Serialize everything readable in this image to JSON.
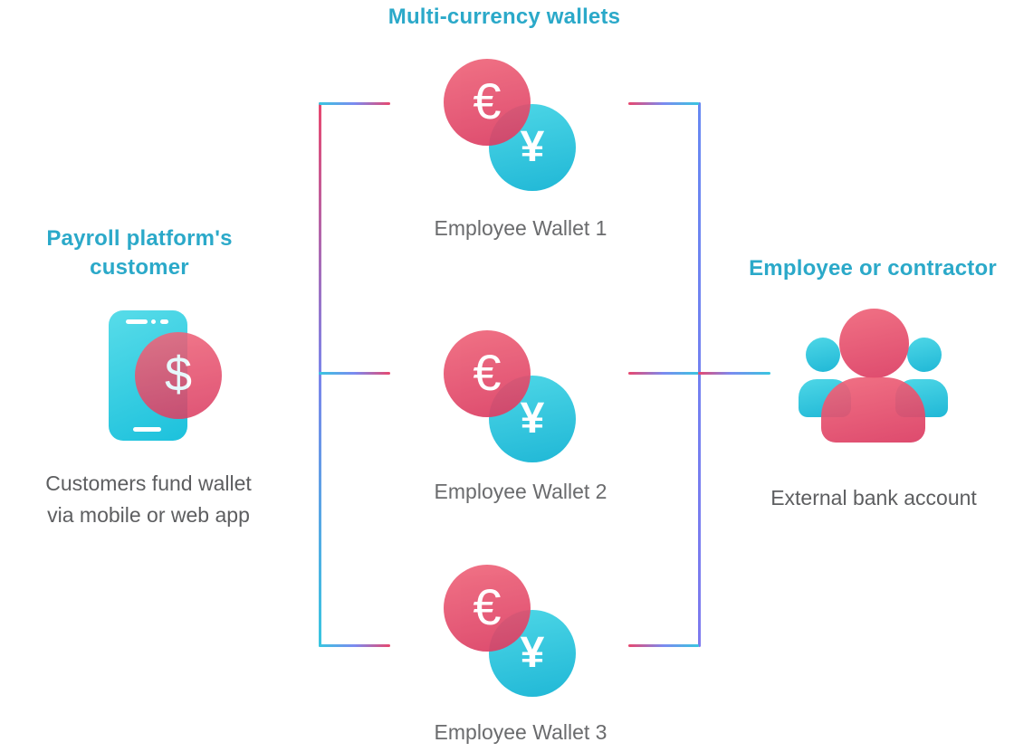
{
  "title": "Multi-currency wallets",
  "left_section": {
    "heading_line1": "Payroll platform's",
    "heading_line2": "customer",
    "caption_line1": "Customers fund wallet",
    "caption_line2": "via mobile or web app",
    "phone_currency": "$"
  },
  "wallets": {
    "currency_euro": "€",
    "currency_yen": "¥",
    "items": [
      {
        "label": "Employee Wallet 1"
      },
      {
        "label": "Employee Wallet 2"
      },
      {
        "label": "Employee Wallet 3"
      }
    ]
  },
  "right_section": {
    "heading": "Employee or contractor",
    "caption": "External bank account"
  },
  "colors": {
    "heading_cyan": "#2ba9c9",
    "body_gray": "#5d5e60",
    "pink": "#e25571",
    "cyan": "#35c3dd",
    "connector_blue": "#7b8af0",
    "connector_pink": "#e8476e",
    "connector_cyan": "#38c6e0"
  }
}
